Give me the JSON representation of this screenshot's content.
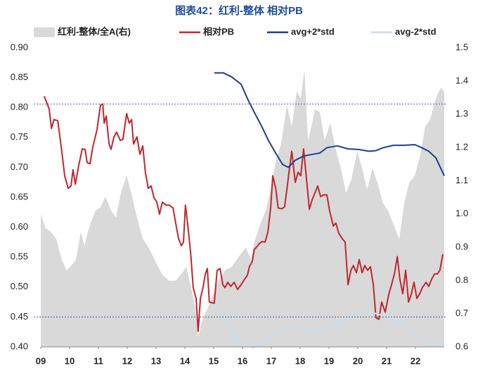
{
  "chart_data": {
    "type": "line",
    "title": "图表42：红利-整体 相对PB",
    "xlim": [
      2009,
      2023
    ],
    "xticks": [
      {
        "value": 2009,
        "label": "09"
      },
      {
        "value": 2010,
        "label": "10"
      },
      {
        "value": 2011,
        "label": "11"
      },
      {
        "value": 2012,
        "label": "12"
      },
      {
        "value": 2013,
        "label": "13"
      },
      {
        "value": 2014,
        "label": "14"
      },
      {
        "value": 2015,
        "label": "15"
      },
      {
        "value": 2016,
        "label": "16"
      },
      {
        "value": 2017,
        "label": "17"
      },
      {
        "value": 2018,
        "label": "18"
      },
      {
        "value": 2019,
        "label": "19"
      },
      {
        "value": 2020,
        "label": "20"
      },
      {
        "value": 2021,
        "label": "21"
      },
      {
        "value": 2022,
        "label": "22"
      }
    ],
    "ylim": [
      0.4,
      0.9
    ],
    "yticks": [
      {
        "value": 0.4,
        "label": "0.40"
      },
      0.45,
      {
        "value": 0.5,
        "label": "0.50"
      },
      0.55,
      {
        "value": 0.6,
        "label": "0.60"
      },
      0.65,
      {
        "value": 0.7,
        "label": "0.70"
      },
      0.75,
      {
        "value": 0.8,
        "label": "0.80"
      },
      0.85,
      {
        "value": 0.9,
        "label": "0.90"
      }
    ],
    "y2lim": [
      0.6,
      1.5
    ],
    "y2ticks": [
      0.6,
      0.7,
      0.8,
      0.9,
      {
        "value": 1,
        "label": "1.0"
      },
      1.1,
      1.2,
      1.3,
      1.4,
      1.5
    ],
    "reference_lines": [
      0.806,
      0.45
    ],
    "reference_color": "#4a6491",
    "series": [
      {
        "name": "红利-整体/全A(右)",
        "kind": "area",
        "axis": "y2",
        "color": "#d9d9d9",
        "x": [
          2009.0,
          2009.17,
          2009.34,
          2009.54,
          2009.73,
          2009.9,
          2010.02,
          2010.22,
          2010.39,
          2010.51,
          2010.71,
          2010.9,
          2011.07,
          2011.24,
          2011.44,
          2011.61,
          2011.78,
          2011.98,
          2012.17,
          2012.34,
          2012.54,
          2012.71,
          2012.95,
          2013.2,
          2013.44,
          2013.68,
          2013.88,
          2014.05,
          2014.22,
          2014.37,
          2014.46,
          2014.61,
          2014.78,
          2014.98,
          2015.15,
          2015.39,
          2015.63,
          2015.88,
          2016.12,
          2016.29,
          2016.41,
          2016.61,
          2016.8,
          2016.98,
          2017.15,
          2017.34,
          2017.54,
          2017.71,
          2017.88,
          2018.02,
          2018.15,
          2018.27,
          2018.39,
          2018.51,
          2018.68,
          2018.85,
          2019.05,
          2019.22,
          2019.41,
          2019.59,
          2019.78,
          2019.98,
          2020.15,
          2020.32,
          2020.51,
          2020.68,
          2020.88,
          2021.05,
          2021.24,
          2021.44,
          2021.61,
          2021.78,
          2021.98,
          2022.17,
          2022.34,
          2022.51,
          2022.71,
          2022.88,
          2023.0
        ],
        "values": [
          1.0,
          0.957,
          0.947,
          0.925,
          0.862,
          0.83,
          0.841,
          0.862,
          0.947,
          0.904,
          0.968,
          1.01,
          1.02,
          1.052,
          1.01,
          0.989,
          1.063,
          1.116,
          1.052,
          0.989,
          0.925,
          0.904,
          0.862,
          0.82,
          0.799,
          0.799,
          0.82,
          0.841,
          0.778,
          0.714,
          0.63,
          0.682,
          0.714,
          0.756,
          0.799,
          0.83,
          0.841,
          0.873,
          0.9,
          0.862,
          0.915,
          0.968,
          1.01,
          1.073,
          1.158,
          1.211,
          1.327,
          1.263,
          1.369,
          1.348,
          1.432,
          1.221,
          1.263,
          1.316,
          1.306,
          1.221,
          1.274,
          1.2,
          1.137,
          1.063,
          1.105,
          1.189,
          1.137,
          1.073,
          1.137,
          1.094,
          1.031,
          1.01,
          0.968,
          0.925,
          1.031,
          1.094,
          1.116,
          1.179,
          1.263,
          1.285,
          1.348,
          1.38,
          1.369
        ]
      },
      {
        "name": "相对PB",
        "kind": "line",
        "axis": "y",
        "color": "#c0272d",
        "x": [
          2009.12,
          2009.29,
          2009.37,
          2009.46,
          2009.59,
          2009.73,
          2009.83,
          2009.95,
          2010.05,
          2010.12,
          2010.2,
          2010.32,
          2010.44,
          2010.54,
          2010.61,
          2010.71,
          2010.8,
          2010.95,
          2011.07,
          2011.15,
          2011.2,
          2011.27,
          2011.37,
          2011.44,
          2011.54,
          2011.63,
          2011.76,
          2011.85,
          2011.98,
          2012.07,
          2012.15,
          2012.22,
          2012.34,
          2012.44,
          2012.54,
          2012.63,
          2012.73,
          2012.83,
          2012.93,
          2013.02,
          2013.12,
          2013.22,
          2013.34,
          2013.46,
          2013.59,
          2013.68,
          2013.78,
          2013.88,
          2013.95,
          2014.02,
          2014.1,
          2014.2,
          2014.29,
          2014.39,
          2014.46,
          2014.54,
          2014.63,
          2014.71,
          2014.78,
          2014.85,
          2015.02,
          2015.12,
          2015.22,
          2015.32,
          2015.39,
          2015.49,
          2015.59,
          2015.71,
          2015.83,
          2015.95,
          2016.07,
          2016.17,
          2016.24,
          2016.34,
          2016.41,
          2016.49,
          2016.59,
          2016.68,
          2016.78,
          2016.88,
          2016.98,
          2017.05,
          2017.15,
          2017.24,
          2017.37,
          2017.46,
          2017.54,
          2017.63,
          2017.71,
          2017.83,
          2017.93,
          2018.02,
          2018.12,
          2018.22,
          2018.32,
          2018.41,
          2018.51,
          2018.61,
          2018.71,
          2018.8,
          2018.93,
          2019.02,
          2019.15,
          2019.24,
          2019.34,
          2019.46,
          2019.56,
          2019.66,
          2019.76,
          2019.85,
          2019.95,
          2020.05,
          2020.15,
          2020.24,
          2020.34,
          2020.44,
          2020.54,
          2020.63,
          2020.73,
          2020.83,
          2020.95,
          2021.07,
          2021.17,
          2021.27,
          2021.37,
          2021.46,
          2021.56,
          2021.66,
          2021.76,
          2021.85,
          2021.95,
          2022.05,
          2022.15,
          2022.24,
          2022.37,
          2022.46,
          2022.56,
          2022.66,
          2022.76,
          2022.85,
          2022.95
        ],
        "values": [
          0.819,
          0.798,
          0.765,
          0.78,
          0.778,
          0.727,
          0.686,
          0.665,
          0.669,
          0.696,
          0.672,
          0.704,
          0.731,
          0.73,
          0.708,
          0.706,
          0.733,
          0.763,
          0.804,
          0.806,
          0.774,
          0.786,
          0.739,
          0.73,
          0.751,
          0.759,
          0.745,
          0.747,
          0.79,
          0.774,
          0.78,
          0.739,
          0.751,
          0.722,
          0.736,
          0.692,
          0.665,
          0.669,
          0.649,
          0.643,
          0.622,
          0.642,
          0.637,
          0.637,
          0.632,
          0.607,
          0.581,
          0.569,
          0.575,
          0.637,
          0.604,
          0.557,
          0.499,
          0.481,
          0.426,
          0.481,
          0.499,
          0.522,
          0.531,
          0.475,
          0.473,
          0.528,
          0.531,
          0.504,
          0.499,
          0.508,
          0.501,
          0.508,
          0.496,
          0.504,
          0.513,
          0.52,
          0.534,
          0.543,
          0.563,
          0.567,
          0.573,
          0.576,
          0.575,
          0.592,
          0.634,
          0.686,
          0.665,
          0.632,
          0.631,
          0.634,
          0.663,
          0.698,
          0.727,
          0.675,
          0.692,
          0.686,
          0.731,
          0.681,
          0.63,
          0.645,
          0.657,
          0.669,
          0.651,
          0.654,
          0.654,
          0.628,
          0.602,
          0.607,
          0.59,
          0.581,
          0.575,
          0.504,
          0.528,
          0.536,
          0.524,
          0.546,
          0.524,
          0.536,
          0.528,
          0.534,
          0.504,
          0.449,
          0.446,
          0.475,
          0.458,
          0.487,
          0.504,
          0.522,
          0.551,
          0.513,
          0.489,
          0.528,
          0.475,
          0.487,
          0.508,
          0.481,
          0.489,
          0.499,
          0.508,
          0.501,
          0.513,
          0.522,
          0.522,
          0.528,
          0.555
        ]
      },
      {
        "name": "avg+2*std",
        "kind": "line",
        "axis": "y",
        "color": "#1d3f8e",
        "x": [
          2015.02,
          2015.34,
          2015.63,
          2015.95,
          2016.17,
          2016.41,
          2016.66,
          2016.9,
          2017.15,
          2017.39,
          2017.59,
          2017.83,
          2018.12,
          2018.44,
          2018.68,
          2018.93,
          2019.29,
          2019.66,
          2020.02,
          2020.39,
          2020.63,
          2020.88,
          2021.24,
          2021.61,
          2021.98,
          2022.22,
          2022.46,
          2022.71,
          2023.0
        ],
        "values": [
          0.858,
          0.858,
          0.851,
          0.839,
          0.815,
          0.792,
          0.769,
          0.745,
          0.724,
          0.705,
          0.7,
          0.712,
          0.719,
          0.722,
          0.724,
          0.733,
          0.736,
          0.731,
          0.73,
          0.727,
          0.728,
          0.733,
          0.737,
          0.737,
          0.738,
          0.733,
          0.727,
          0.716,
          0.686
        ]
      },
      {
        "name": "avg-2*std",
        "kind": "line",
        "axis": "y",
        "color": "#c7def2",
        "x": [
          2015.02,
          2015.27,
          2015.51,
          2015.76,
          2016.0,
          2016.37,
          2016.73,
          2017.1,
          2017.46,
          2017.83,
          2018.32,
          2018.8,
          2019.29,
          2019.78,
          2020.27,
          2020.76,
          2021.24,
          2021.61,
          2021.98,
          2022.34,
          2022.71,
          2023.0
        ],
        "values": [
          0.466,
          0.452,
          0.438,
          0.419,
          0.405,
          0.399,
          0.405,
          0.419,
          0.431,
          0.431,
          0.428,
          0.428,
          0.438,
          0.452,
          0.461,
          0.454,
          0.446,
          0.438,
          0.422,
          0.411,
          0.405,
          0.405
        ]
      }
    ]
  }
}
